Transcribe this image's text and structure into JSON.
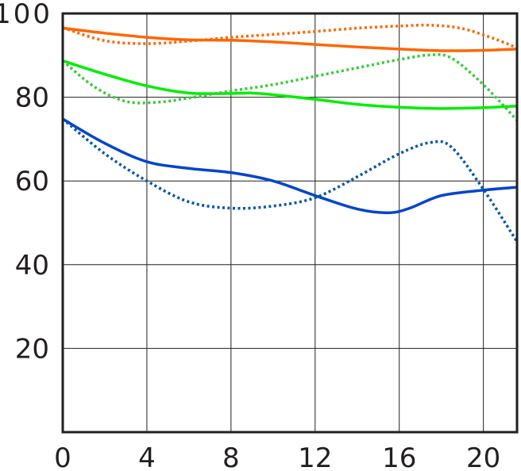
{
  "chart_data": {
    "type": "line",
    "title": "",
    "xlabel": "",
    "ylabel": "",
    "xlim": [
      0,
      21.6
    ],
    "ylim": [
      0,
      100
    ],
    "x_ticks": [
      0,
      4,
      8,
      12,
      16,
      20
    ],
    "y_ticks": [
      20,
      40,
      60,
      80,
      100
    ],
    "x_tick_labels": [
      "0",
      "4",
      "8",
      "12",
      "16",
      "20"
    ],
    "y_tick_labels": [
      "20",
      "40",
      "60",
      "80",
      "100"
    ],
    "grid": true,
    "legend": "none",
    "series": [
      {
        "color": "#ff6600",
        "style": "solid",
        "x": [
          0,
          2,
          4,
          6,
          8,
          10,
          12,
          14,
          16,
          18,
          20,
          21.6
        ],
        "y": [
          96.5,
          95.3,
          94.3,
          93.7,
          93.6,
          93.2,
          92.6,
          92.0,
          91.5,
          91.1,
          91.2,
          91.5
        ]
      },
      {
        "color": "#ff6600",
        "style": "dotted",
        "x": [
          0,
          2,
          4,
          6,
          8,
          10,
          12,
          14,
          16,
          17.5,
          19,
          20.5,
          21.6
        ],
        "y": [
          96.6,
          93.5,
          92.8,
          93.4,
          94.3,
          95.0,
          95.7,
          96.5,
          97.0,
          97.2,
          96.4,
          94.0,
          91.8
        ]
      },
      {
        "color": "#00ee00",
        "style": "solid",
        "x": [
          0,
          2,
          4,
          6,
          8,
          9,
          10,
          12,
          14,
          16,
          18,
          20,
          21.6
        ],
        "y": [
          88.7,
          85.5,
          82.7,
          81.0,
          80.9,
          81.0,
          80.6,
          79.5,
          78.3,
          77.6,
          77.3,
          77.5,
          77.9
        ]
      },
      {
        "color": "#33cc33",
        "style": "dotted",
        "x": [
          0,
          1.5,
          3,
          4.5,
          6,
          8,
          10,
          12,
          14,
          16,
          17.5,
          18.5,
          20,
          21.6
        ],
        "y": [
          88.7,
          82.5,
          79.0,
          78.8,
          79.8,
          81.5,
          83.0,
          85.0,
          87.0,
          89.0,
          90.1,
          89.3,
          83.0,
          74.5
        ]
      },
      {
        "color": "#0044cc",
        "style": "solid",
        "x": [
          0,
          2,
          4,
          6,
          8,
          10,
          12,
          14,
          15.5,
          16.5,
          18,
          20,
          21.6
        ],
        "y": [
          74.8,
          69.0,
          64.6,
          63.0,
          62.0,
          60.0,
          56.5,
          53.3,
          52.4,
          53.5,
          56.5,
          57.8,
          58.5
        ]
      },
      {
        "color": "#0055aa",
        "style": "dotted",
        "x": [
          0,
          2,
          4,
          6,
          8,
          10,
          12,
          14,
          16,
          17.5,
          18.5,
          20,
          21.6
        ],
        "y": [
          74.8,
          66.5,
          60.0,
          55.0,
          53.5,
          54.0,
          56.0,
          61.0,
          66.5,
          69.2,
          68.0,
          58.0,
          45.5
        ]
      }
    ]
  }
}
